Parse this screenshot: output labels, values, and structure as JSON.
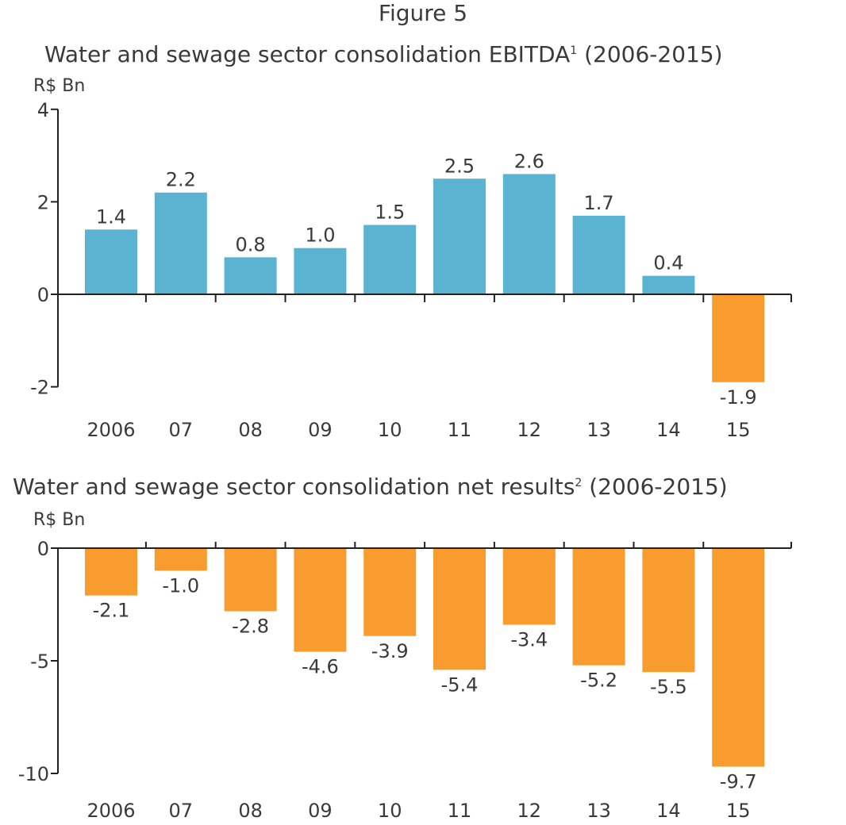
{
  "figure_label": "Figure 5",
  "chart_data": [
    {
      "type": "bar",
      "title": "Water and sewage sector consolidation EBITDA",
      "title_footnote": "1",
      "title_suffix": " (2006-2015)",
      "ylabel": "R$ Bn",
      "categories": [
        "2006",
        "07",
        "08",
        "09",
        "10",
        "11",
        "12",
        "13",
        "14",
        "15"
      ],
      "values": [
        1.4,
        2.2,
        0.8,
        1.0,
        1.5,
        2.5,
        2.6,
        1.7,
        0.4,
        -1.9
      ],
      "data_labels": [
        "1.4",
        "2.2",
        "0.8",
        "1.0",
        "1.5",
        "2.5",
        "2.6",
        "1.7",
        "0.4",
        "-1.9"
      ],
      "ylim": [
        -2,
        4
      ],
      "yticks": [
        "4",
        "2",
        "0",
        "-2"
      ],
      "ytick_values": [
        4,
        2,
        0,
        -2
      ],
      "grid": false,
      "colors": {
        "positive": "#5ab3d1",
        "negative": "#f99c2f"
      }
    },
    {
      "type": "bar",
      "title": "Water and sewage sector consolidation net results",
      "title_footnote": "2",
      "title_suffix": " (2006-2015)",
      "ylabel": "R$ Bn",
      "categories": [
        "2006",
        "07",
        "08",
        "09",
        "10",
        "11",
        "12",
        "13",
        "14",
        "15"
      ],
      "values": [
        -2.1,
        -1.0,
        -2.8,
        -4.6,
        -3.9,
        -5.4,
        -3.4,
        -5.2,
        -5.5,
        -9.7
      ],
      "data_labels": [
        "-2.1",
        "-1.0",
        "-2.8",
        "-4.6",
        "-3.9",
        "-5.4",
        "-3.4",
        "-5.2",
        "-5.5",
        "-9.7"
      ],
      "ylim": [
        -10,
        0
      ],
      "yticks": [
        "0",
        "-5",
        "-10"
      ],
      "ytick_values": [
        0,
        -5,
        -10
      ],
      "grid": false,
      "colors": {
        "positive": "#5ab3d1",
        "negative": "#f99c2f"
      }
    }
  ]
}
